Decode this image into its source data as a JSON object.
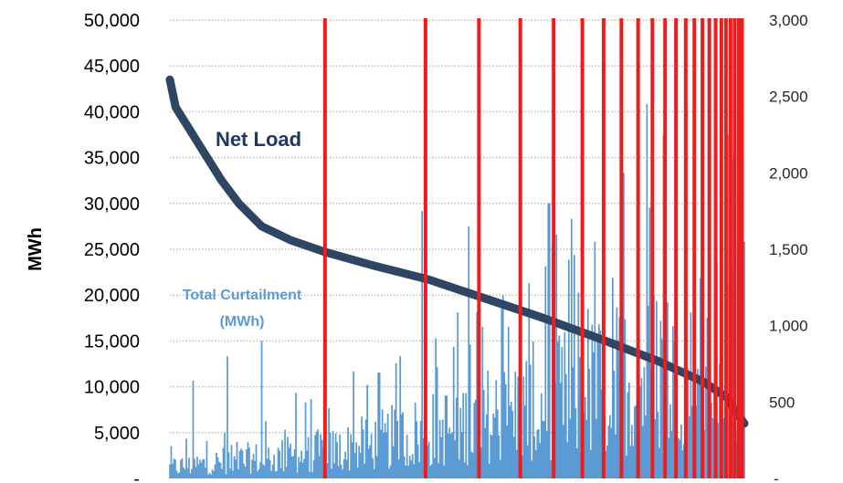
{
  "chart_data": {
    "type": "area",
    "ylabel": "MWh",
    "left_axis": {
      "ylim": [
        0,
        50000
      ],
      "tick_labels": [
        "-",
        "5,000",
        "10,000",
        "15,000",
        "20,000",
        "25,000",
        "30,000",
        "35,000",
        "40,000",
        "45,000",
        "50,000"
      ]
    },
    "right_axis": {
      "ylim": [
        0,
        3000
      ],
      "tick_labels": [
        "-",
        "500",
        "1,000",
        "1,500",
        "2,000",
        "2,500",
        "3,000"
      ]
    },
    "grid": true,
    "series": [
      {
        "name": "Net Load",
        "type": "line",
        "axis": "left",
        "color": "#2e4564",
        "points": [
          [
            0.0,
            43500
          ],
          [
            0.01,
            40500
          ],
          [
            0.03,
            38500
          ],
          [
            0.06,
            35500
          ],
          [
            0.09,
            32500
          ],
          [
            0.12,
            30000
          ],
          [
            0.16,
            27500
          ],
          [
            0.21,
            26000
          ],
          [
            0.27,
            24700
          ],
          [
            0.35,
            23300
          ],
          [
            0.45,
            21700
          ],
          [
            0.55,
            19600
          ],
          [
            0.65,
            17500
          ],
          [
            0.75,
            15200
          ],
          [
            0.85,
            12800
          ],
          [
            0.93,
            10500
          ],
          [
            0.97,
            8800
          ],
          [
            0.985,
            7200
          ],
          [
            1.0,
            6000
          ]
        ]
      },
      {
        "name": "Total Curtailment (MWh)",
        "type": "bar",
        "axis": "right",
        "color": "#5b9bd5",
        "envelope": [
          [
            0.0,
            120
          ],
          [
            0.1,
            180
          ],
          [
            0.2,
            230
          ],
          [
            0.3,
            300
          ],
          [
            0.4,
            420
          ],
          [
            0.5,
            550
          ],
          [
            0.6,
            700
          ],
          [
            0.7,
            850
          ],
          [
            0.8,
            1000
          ],
          [
            0.9,
            1250
          ],
          [
            0.95,
            1400
          ],
          [
            1.0,
            1500
          ]
        ],
        "peaks": [
          [
            0.04,
            640
          ],
          [
            0.1,
            800
          ],
          [
            0.16,
            900
          ],
          [
            0.22,
            560
          ],
          [
            0.32,
            700
          ],
          [
            0.4,
            800
          ],
          [
            0.44,
            1750
          ],
          [
            0.52,
            1650
          ],
          [
            0.58,
            1200
          ],
          [
            0.66,
            1800
          ],
          [
            0.7,
            1700
          ],
          [
            0.74,
            1550
          ],
          [
            0.79,
            2000
          ],
          [
            0.83,
            2450
          ],
          [
            0.86,
            2250
          ],
          [
            0.9,
            2450
          ],
          [
            0.94,
            2400
          ],
          [
            0.97,
            2250
          ],
          [
            1.0,
            1550
          ]
        ]
      }
    ],
    "red_lines": {
      "color": "#ee1c1c",
      "positions": [
        0.27,
        0.445,
        0.538,
        0.61,
        0.668,
        0.718,
        0.755,
        0.786,
        0.815,
        0.84,
        0.862,
        0.881,
        0.898,
        0.913,
        0.927,
        0.939,
        0.95,
        0.96,
        0.968,
        0.976,
        0.983,
        0.99,
        0.996
      ]
    },
    "annotations": {
      "net_load": "Net Load",
      "curtailment_line1": "Total Curtailment",
      "curtailment_line2": "(MWh)"
    }
  }
}
